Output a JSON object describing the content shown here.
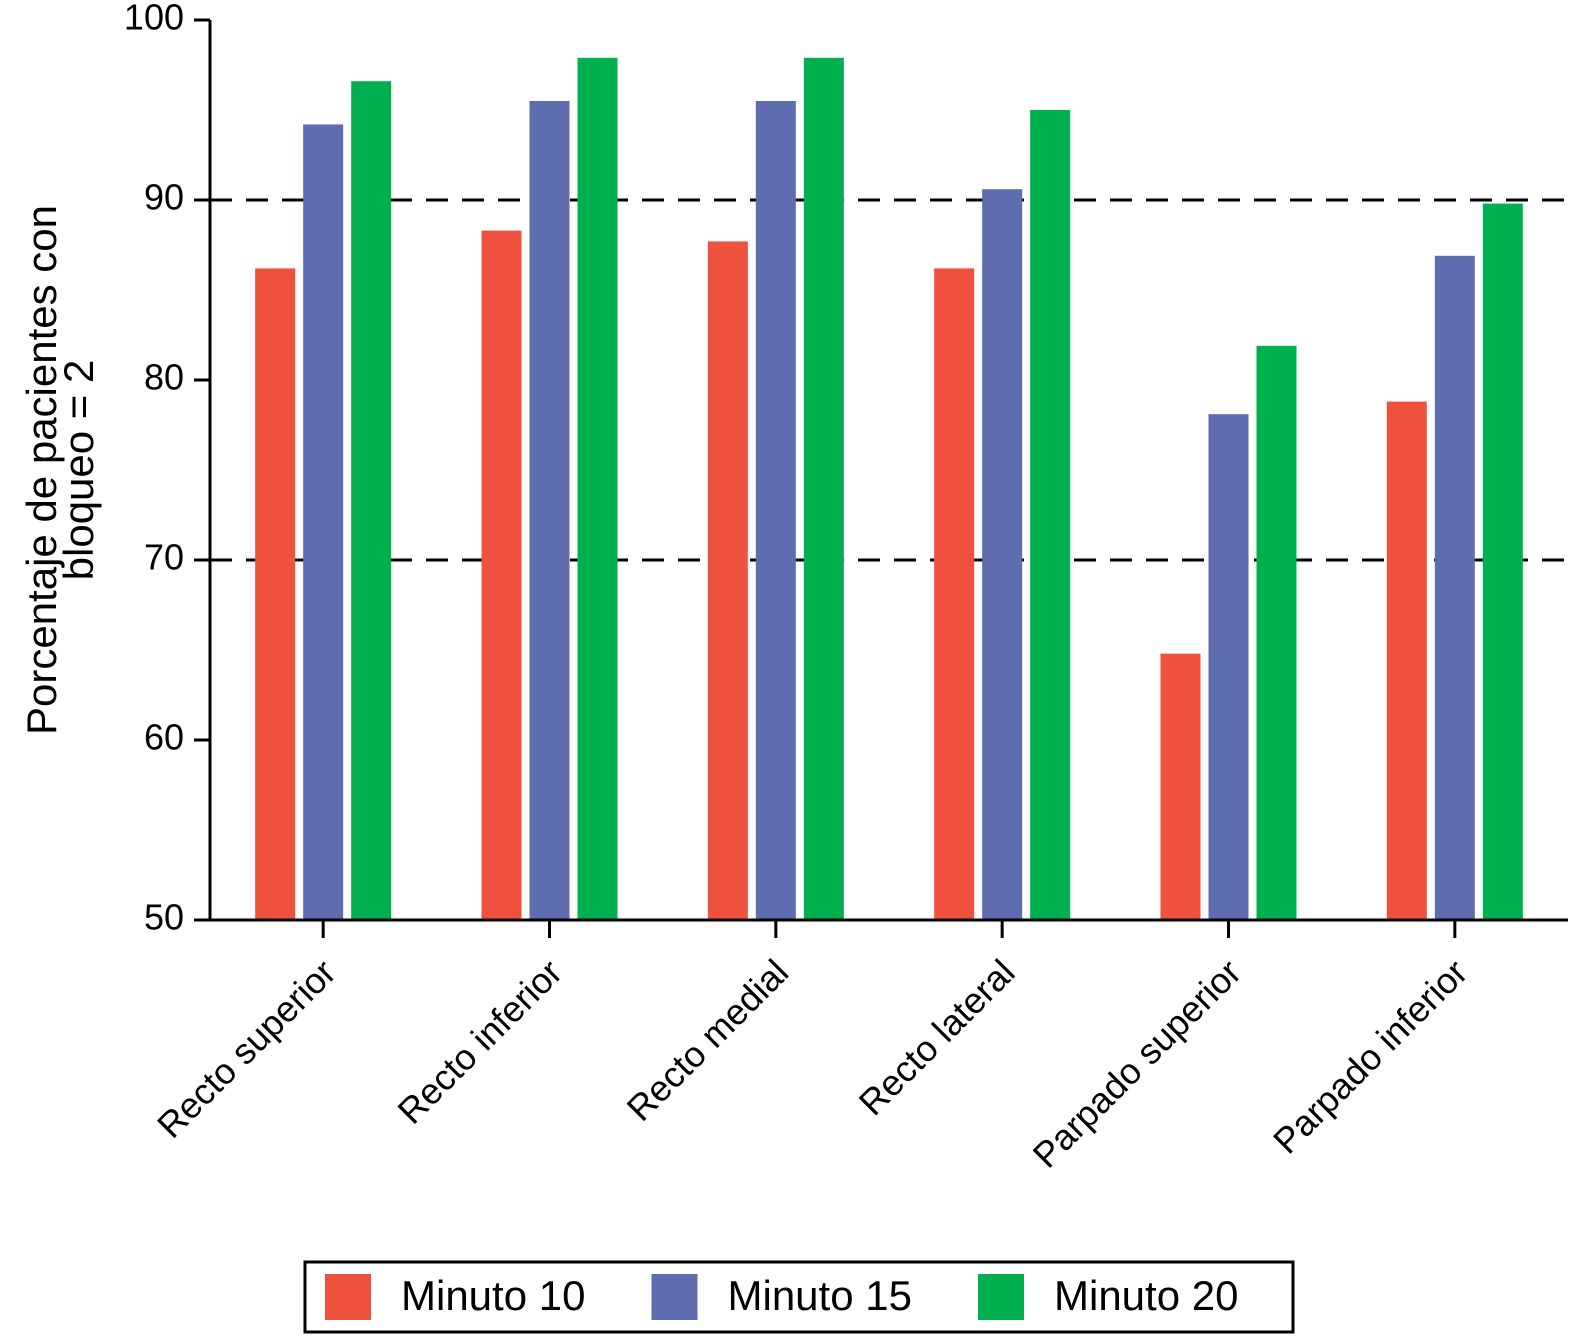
{
  "chart_data": {
    "type": "bar",
    "ylabel": [
      "Porcentaje de pacientes con",
      "bloqueo = 2"
    ],
    "categories": [
      "Recto superior",
      "Recto inferior",
      "Recto medial",
      "Recto lateral",
      "Parpado superior",
      "Parpado inferior"
    ],
    "series": [
      {
        "name": "Minuto 10",
        "color": "#ee523e",
        "values": [
          86.2,
          88.3,
          87.7,
          86.2,
          64.8,
          78.8
        ]
      },
      {
        "name": "Minuto 15",
        "color": "#5d6db0",
        "values": [
          94.2,
          95.5,
          95.5,
          90.6,
          78.1,
          86.9
        ]
      },
      {
        "name": "Minuto 20",
        "color": "#00b04f",
        "values": [
          96.6,
          97.9,
          97.9,
          95.0,
          81.9,
          89.8
        ]
      }
    ],
    "ylim": [
      50,
      100
    ],
    "yticks": [
      50,
      60,
      70,
      80,
      90,
      100
    ],
    "hlines": [
      70,
      90
    ],
    "legend": "bottom"
  }
}
